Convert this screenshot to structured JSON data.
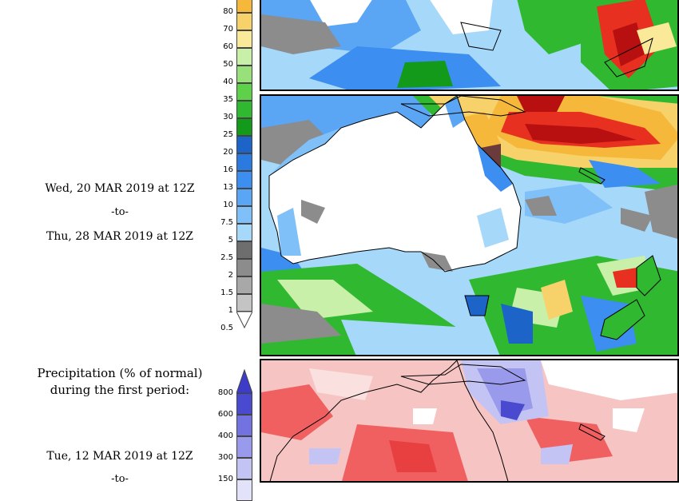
{
  "period1": {
    "start": "Wed, 20 MAR 2019 at 12Z",
    "to": "-to-",
    "end": "Thu, 28 MAR 2019 at 12Z"
  },
  "period2": {
    "title_line1": "Precipitation (% of normal)",
    "title_line2": "during the first period:",
    "start": "Tue, 12 MAR 2019 at 12Z",
    "to": "-to-"
  },
  "precip_scale": {
    "labels": [
      "80",
      "70",
      "60",
      "50",
      "40",
      "35",
      "30",
      "25",
      "20",
      "16",
      "13",
      "10",
      "7.5",
      "5",
      "2.5",
      "2",
      "1.5",
      "1",
      "0.5"
    ],
    "colors": [
      "#f5b83a",
      "#f7d26a",
      "#fbe99a",
      "#c8f0a8",
      "#98e07a",
      "#5fd04a",
      "#30b830",
      "#139a1a",
      "#1c64c8",
      "#2a7ae0",
      "#3c8ef0",
      "#5aa6f4",
      "#7fc0f8",
      "#a6d8fa",
      "#6e6e6e",
      "#8c8c8c",
      "#a8a8a8",
      "#c4c4c4"
    ]
  },
  "pct_scale": {
    "labels": [
      "800",
      "600",
      "400",
      "300",
      "150"
    ],
    "colors": [
      "#4a4ad0",
      "#7272e0",
      "#9a9aec",
      "#c4c4f4",
      "#e2e2fa"
    ]
  }
}
